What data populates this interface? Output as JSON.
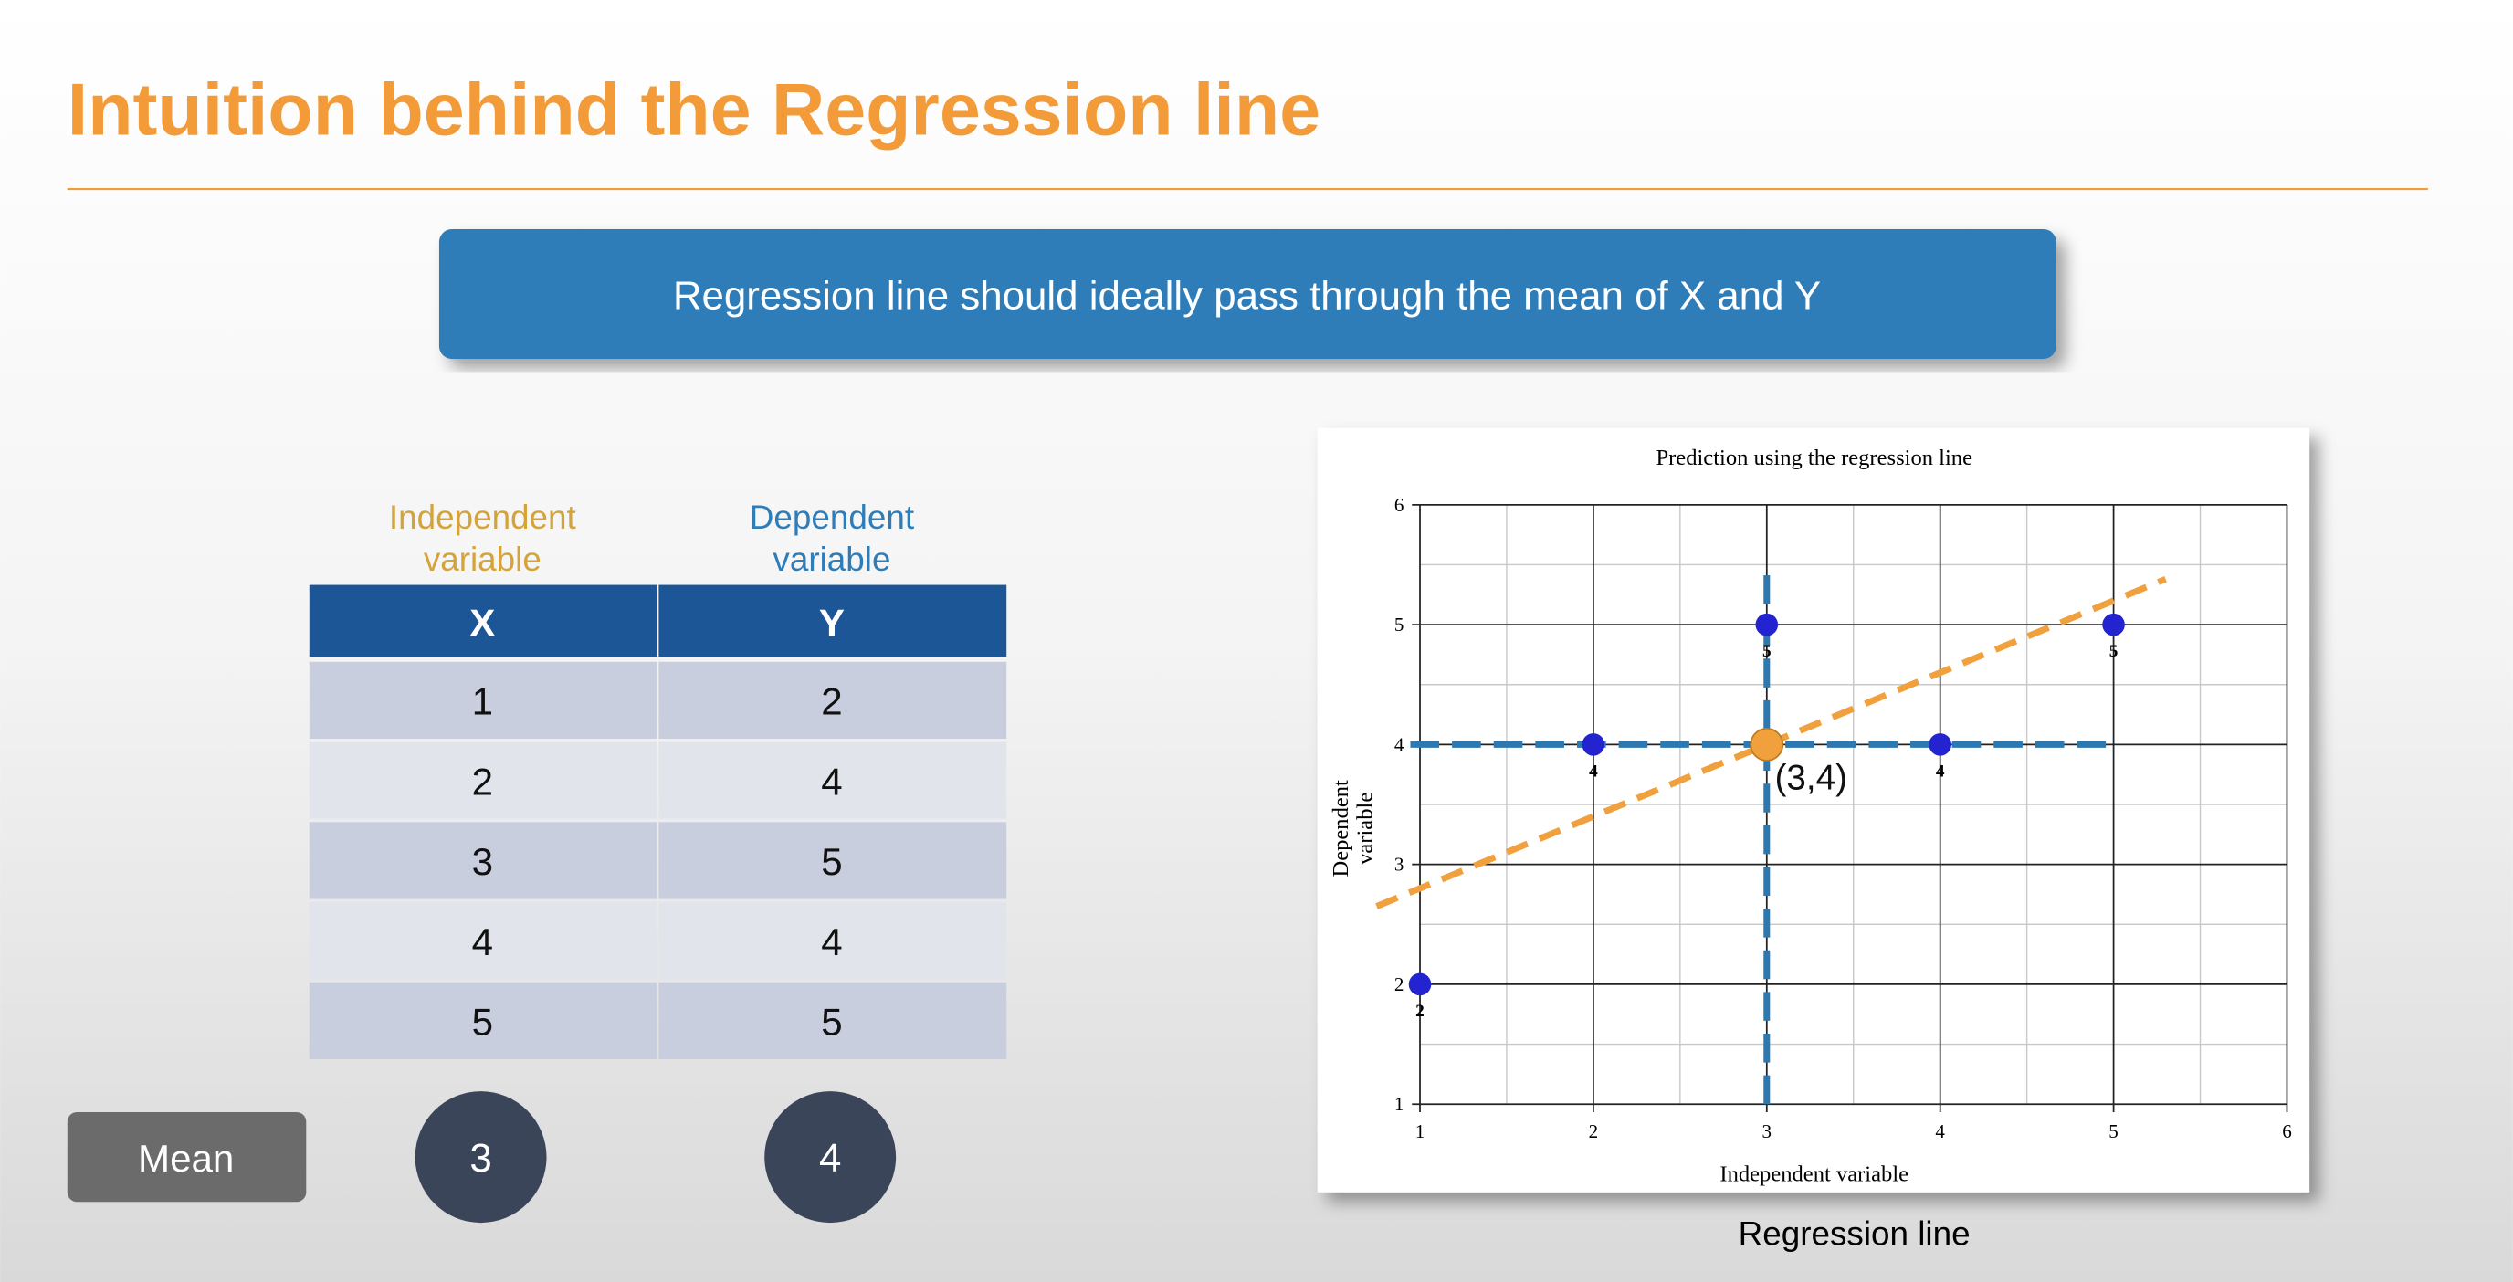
{
  "header": {
    "title": "Intuition behind the Regression line"
  },
  "banner": {
    "text": "Regression line should ideally pass through the mean of X and Y"
  },
  "table": {
    "column_labels": [
      [
        "Independent",
        "variable"
      ],
      [
        "Dependent",
        "variable"
      ]
    ],
    "headers": [
      "X",
      "Y"
    ],
    "rows": [
      [
        1,
        2
      ],
      [
        2,
        4
      ],
      [
        3,
        5
      ],
      [
        4,
        4
      ],
      [
        5,
        5
      ]
    ]
  },
  "mean": {
    "label": "Mean",
    "values": [
      3,
      4
    ]
  },
  "chart": {
    "type": "scatter",
    "title": "Prediction using the regression line",
    "x_label": "Independent variable",
    "y_label": [
      "Dependent",
      "variable"
    ],
    "x": [
      1,
      2,
      3,
      4,
      5
    ],
    "y": [
      2,
      4,
      5,
      4,
      5
    ],
    "point_labels": [
      2,
      4,
      5,
      4,
      5
    ],
    "point_color": "#2323cf",
    "mean_point": {
      "x": 3,
      "y": 4,
      "label": "(3,4)",
      "color": "#f0a03c"
    },
    "regression_line": {
      "x": [
        0.75,
        5.3
      ],
      "y": [
        2.65,
        5.38
      ],
      "color": "#f0a03c"
    },
    "mean_lines_color": "#2e78b0",
    "xlim": [
      1,
      6
    ],
    "ylim": [
      1,
      6
    ],
    "xticks": [
      1,
      2,
      3,
      4,
      5,
      6
    ],
    "yticks": [
      1,
      2,
      3,
      4,
      5,
      6
    ],
    "grid": true,
    "minor_grid": true
  },
  "caption": "Regression line"
}
